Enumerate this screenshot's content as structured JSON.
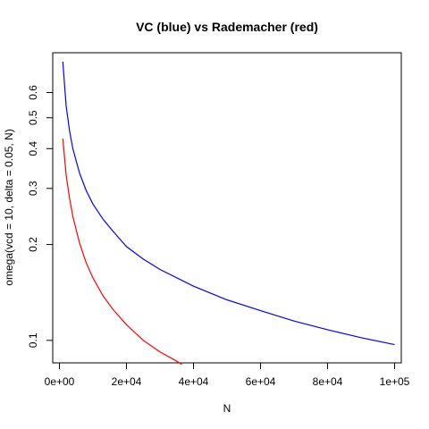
{
  "chart_data": {
    "type": "line",
    "title": "VC (blue) vs Rademacher (red)",
    "xlabel": "N",
    "ylabel": "omega(vcd = 10, delta = 0.05, N)",
    "xlim": [
      -2000,
      102000
    ],
    "ylim": [
      0.085,
      0.8
    ],
    "y_scale": "log",
    "grid": false,
    "legend": "none",
    "x_ticks": [
      {
        "value": 0,
        "label": "0e+00"
      },
      {
        "value": 20000,
        "label": "2e+04"
      },
      {
        "value": 40000,
        "label": "4e+04"
      },
      {
        "value": 60000,
        "label": "6e+04"
      },
      {
        "value": 80000,
        "label": "8e+04"
      },
      {
        "value": 100000,
        "label": "1e+05"
      }
    ],
    "y_ticks": [
      {
        "value": 0.1,
        "label": "0.1"
      },
      {
        "value": 0.2,
        "label": "0.2"
      },
      {
        "value": 0.3,
        "label": "0.3"
      },
      {
        "value": 0.4,
        "label": "0.4"
      },
      {
        "value": 0.5,
        "label": "0.5"
      },
      {
        "value": 0.6,
        "label": "0.6"
      }
    ],
    "series": [
      {
        "color": "#0000ff",
        "x": [
          1000,
          2000,
          3000,
          4000,
          6000,
          8000,
          10000,
          13000,
          16000,
          20000,
          25000,
          30000,
          40000,
          50000,
          60000,
          70000,
          80000,
          90000,
          100000
        ],
        "y": [
          0.75,
          0.545,
          0.455,
          0.4,
          0.335,
          0.295,
          0.268,
          0.24,
          0.22,
          0.197,
          0.18,
          0.167,
          0.148,
          0.134,
          0.124,
          0.115,
          0.108,
          0.102,
          0.097
        ]
      },
      {
        "color": "#ff0000",
        "x": [
          1000,
          2000,
          3000,
          4000,
          6000,
          8000,
          10000,
          13000,
          16000,
          20000,
          25000,
          30000,
          35000,
          36500
        ],
        "y": [
          0.43,
          0.33,
          0.28,
          0.245,
          0.202,
          0.175,
          0.157,
          0.138,
          0.125,
          0.112,
          0.1,
          0.092,
          0.086,
          0.084
        ]
      }
    ]
  }
}
